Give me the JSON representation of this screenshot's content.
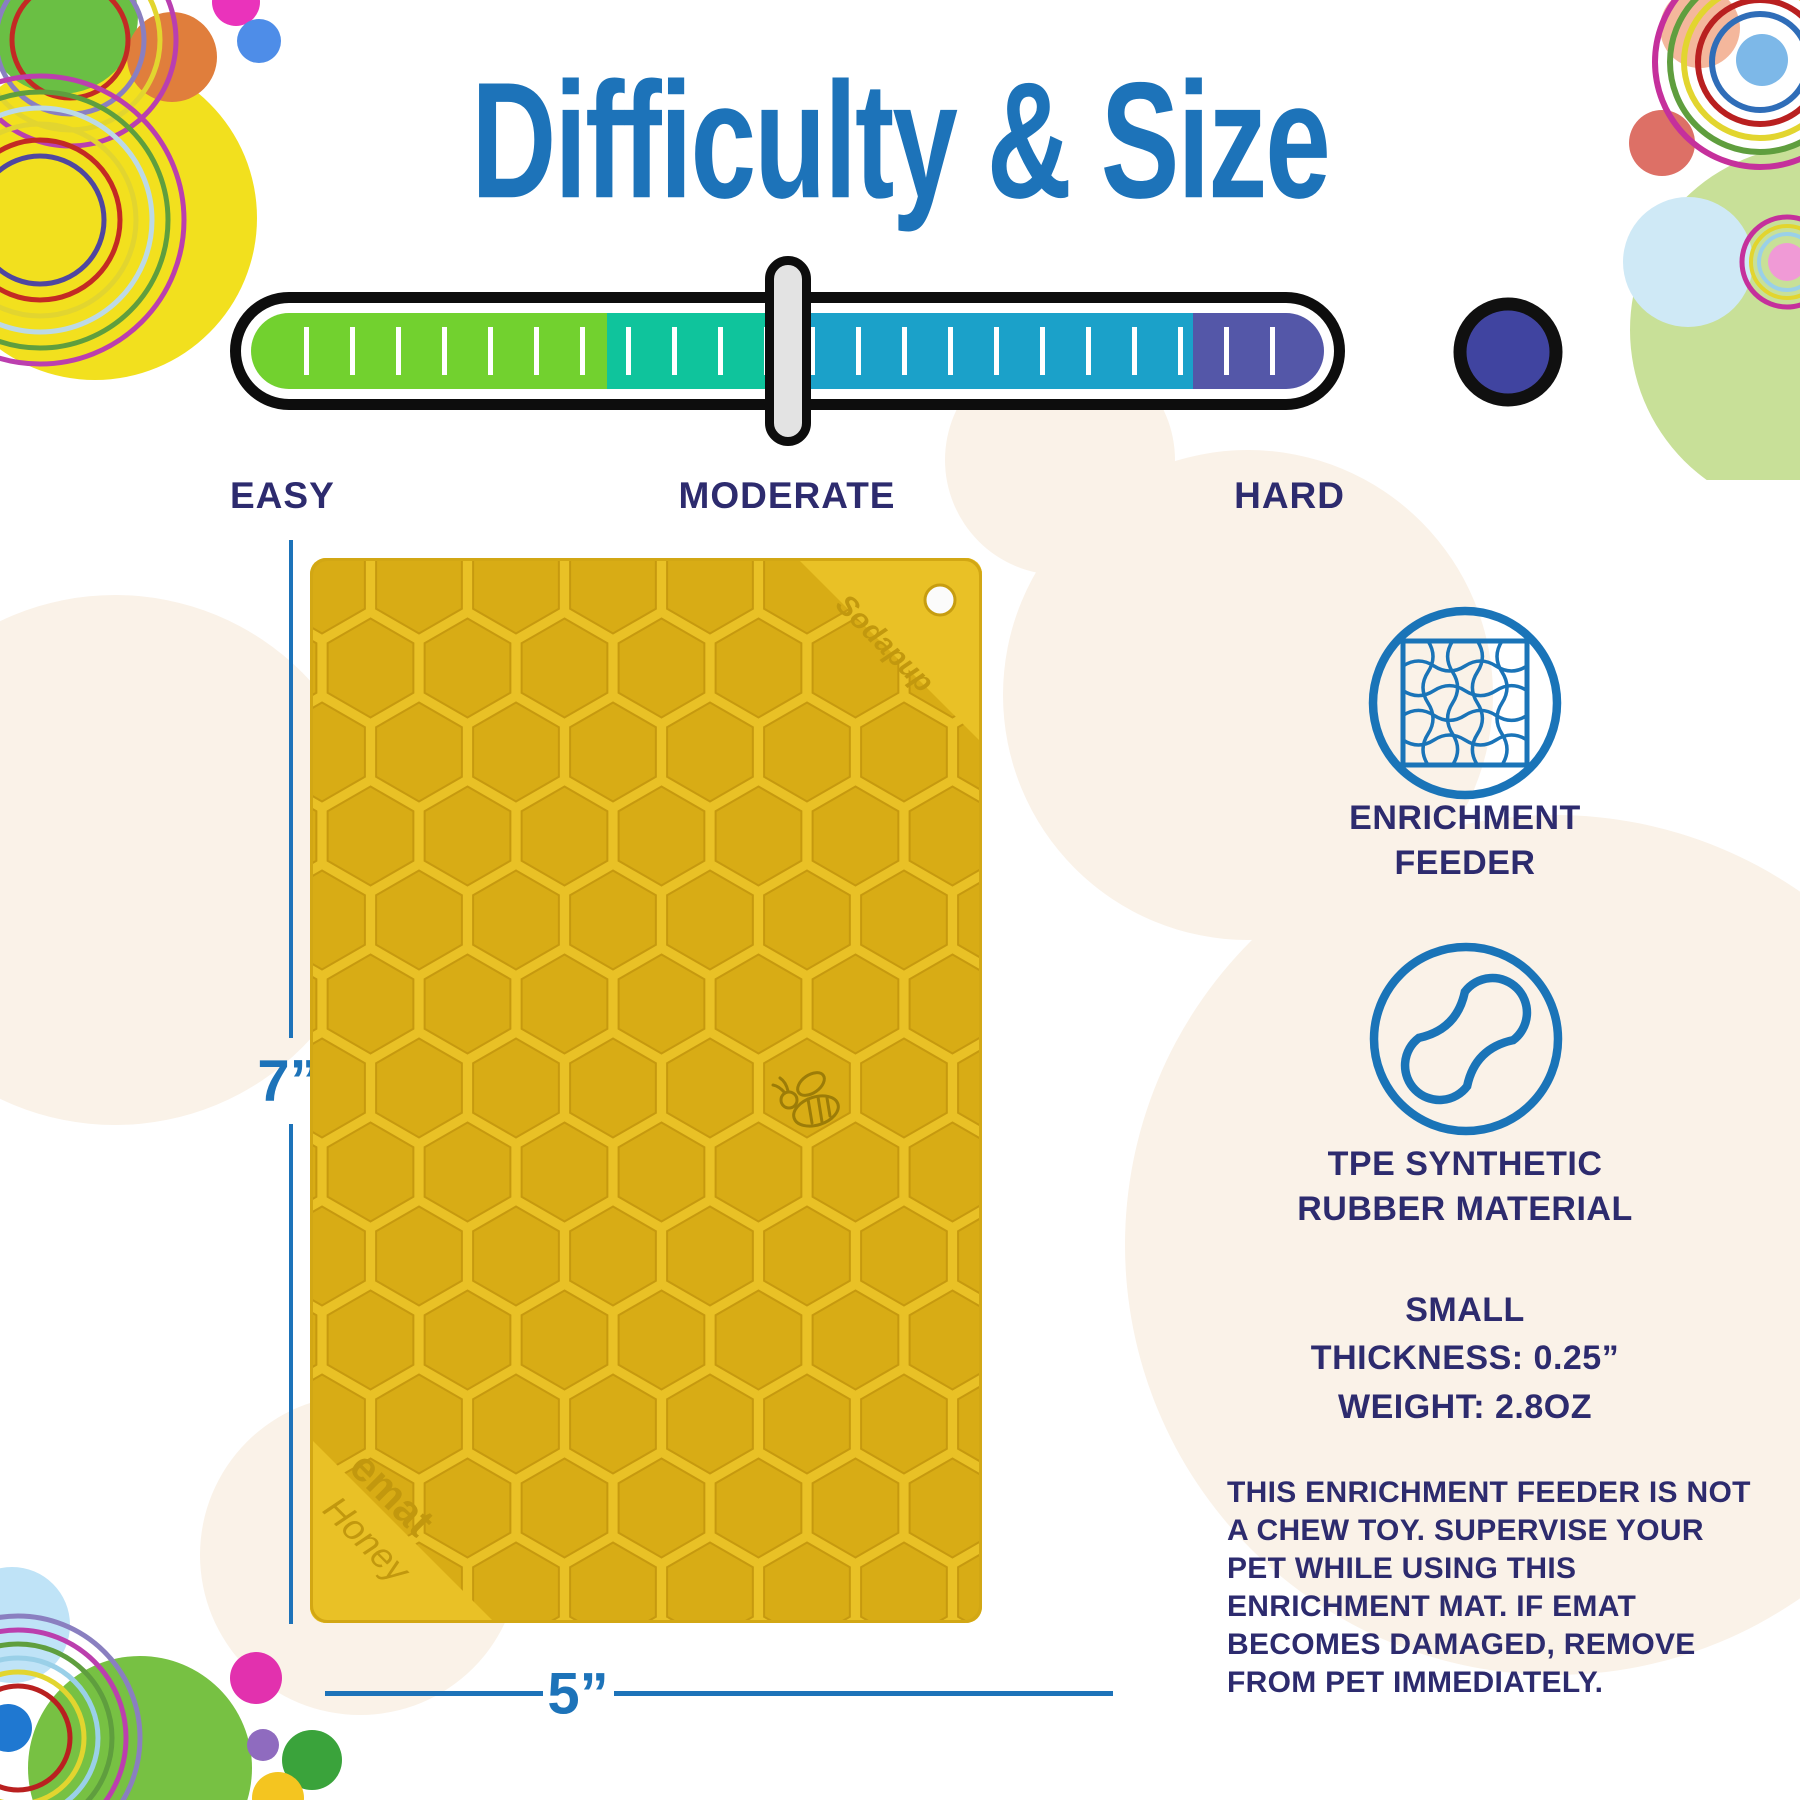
{
  "title": "Difficulty & Size",
  "difficulty_scale": {
    "selected_level": "MODERATE",
    "handle_position_pct": 50,
    "labels": {
      "easy": "EASY",
      "moderate": "MODERATE",
      "hard": "HARD"
    },
    "segments": [
      {
        "level": "easy",
        "color": "#72d12f",
        "width_pct": 33.2
      },
      {
        "level": "easy-moderate",
        "color": "#0fc49c",
        "width_pct": 18.0
      },
      {
        "level": "moderate-hard",
        "color": "#1ba1c9",
        "width_pct": 36.6
      },
      {
        "level": "hard",
        "color": "#5457a8",
        "width_pct": 12.2
      }
    ]
  },
  "mat": {
    "height_label": "7”",
    "width_label": "5”",
    "surface_color": "#e9c126",
    "cell_color": "#d8ac15",
    "engraving_brand": "Sodapup",
    "engraving_name": "emat",
    "engraving_design": "Honey"
  },
  "features": [
    {
      "icon": "puzzle-grid-icon",
      "line1": "ENRICHMENT",
      "line2": "FEEDER"
    },
    {
      "icon": "peanut-icon",
      "line1": "TPE SYNTHETIC",
      "line2": "RUBBER MATERIAL"
    }
  ],
  "specs": {
    "size": "SMALL",
    "thickness": "THICKNESS: 0.25”",
    "weight": "WEIGHT: 2.8OZ"
  },
  "warning_text": "THIS ENRICHMENT FEEDER IS NOT A CHEW TOY. SUPERVISE YOUR PET WHILE USING THIS ENRICHMENT MAT. IF EMAT BECOMES DAMAGED, REMOVE FROM PET IMMEDIATELY.",
  "colors": {
    "accent_blue": "#1d73b9",
    "navy_text": "#2d2b6e",
    "icon_blue": "#1a74b8"
  }
}
